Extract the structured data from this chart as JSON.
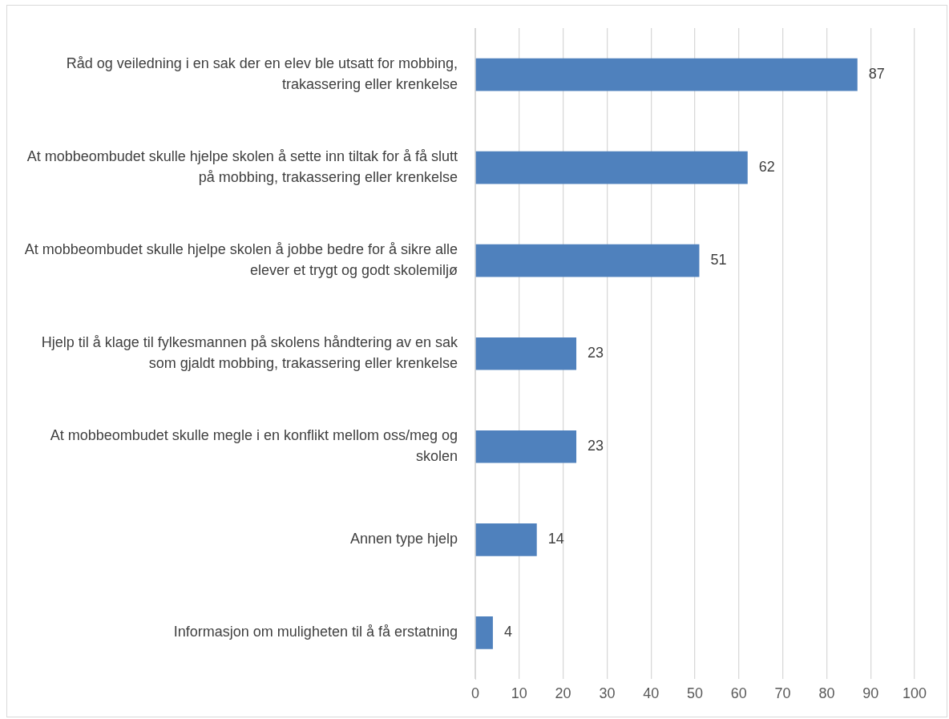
{
  "chart_data": {
    "type": "bar",
    "orientation": "horizontal",
    "categories": [
      "Råd og veiledning i en sak der en elev ble utsatt for mobbing, trakassering eller krenkelse",
      "At mobbeombudet skulle hjelpe skolen å sette inn tiltak for å få slutt på mobbing, trakassering eller krenkelse",
      "At mobbeombudet skulle hjelpe skolen å jobbe bedre for å sikre alle elever et trygt og godt skolemiljø",
      "Hjelp til å klage til fylkesmannen på skolens håndtering av en sak som gjaldt mobbing, trakassering eller krenkelse",
      "At mobbeombudet skulle megle i en konflikt mellom oss/meg og skolen",
      "Annen type hjelp",
      "Informasjon om muligheten til å få erstatning"
    ],
    "values": [
      87,
      62,
      51,
      23,
      23,
      14,
      4
    ],
    "color": "#4f81bd",
    "xlim": [
      0,
      100
    ],
    "xticks": [
      0,
      10,
      20,
      30,
      40,
      50,
      60,
      70,
      80,
      90,
      100
    ],
    "grid": "x",
    "data_labels": true,
    "legend": false
  }
}
